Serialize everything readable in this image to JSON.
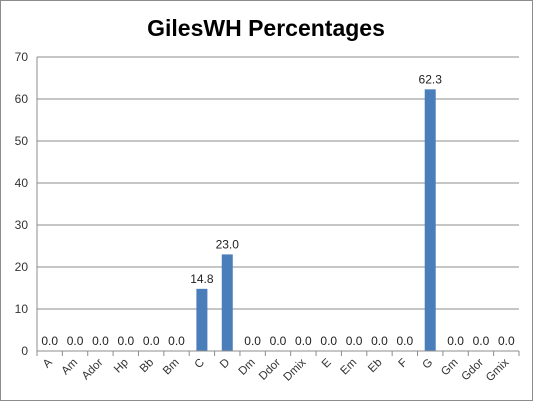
{
  "chart_data": {
    "type": "bar",
    "title": "GilesWH Percentages",
    "xlabel": "",
    "ylabel": "",
    "ylim": [
      0,
      70
    ],
    "yticks": [
      0,
      10,
      20,
      30,
      40,
      50,
      60,
      70
    ],
    "grid": true,
    "legend": "none",
    "categories": [
      "A",
      "Am",
      "Ador",
      "Hp",
      "Bb",
      "Bm",
      "C",
      "D",
      "Dm",
      "Ddor",
      "Dmix",
      "E",
      "Em",
      "Eb",
      "F",
      "G",
      "Gm",
      "Gdor",
      "Gmix"
    ],
    "values": [
      0.0,
      0.0,
      0.0,
      0.0,
      0.0,
      0.0,
      14.8,
      23.0,
      0.0,
      0.0,
      0.0,
      0.0,
      0.0,
      0.0,
      0.0,
      62.3,
      0.0,
      0.0,
      0.0
    ],
    "data_labels": [
      "0.0",
      "0.0",
      "0.0",
      "0.0",
      "0.0",
      "0.0",
      "14.8",
      "23.0",
      "0.0",
      "0.0",
      "0.0",
      "0.0",
      "0.0",
      "0.0",
      "0.0",
      "62.3",
      "0.0",
      "0.0",
      "0.0"
    ],
    "bar_color": "#4a7ebb",
    "grid_color": "#8c8c8c"
  }
}
